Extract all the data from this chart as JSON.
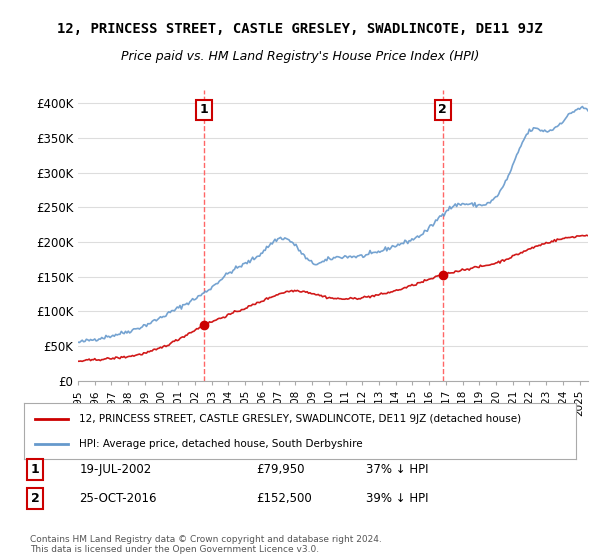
{
  "title": "12, PRINCESS STREET, CASTLE GRESLEY, SWADLINCOTE, DE11 9JZ",
  "subtitle": "Price paid vs. HM Land Registry's House Price Index (HPI)",
  "ylabel": "",
  "ylim": [
    0,
    420000
  ],
  "yticks": [
    0,
    50000,
    100000,
    150000,
    200000,
    250000,
    300000,
    350000,
    400000
  ],
  "ytick_labels": [
    "£0",
    "£50K",
    "£100K",
    "£150K",
    "£200K",
    "£250K",
    "£300K",
    "£350K",
    "£400K"
  ],
  "sale1_date": 2002.54,
  "sale1_price": 79950,
  "sale1_label": "1",
  "sale1_text": "19-JUL-2002",
  "sale1_price_text": "£79,950",
  "sale1_hpi_text": "37% ↓ HPI",
  "sale2_date": 2016.81,
  "sale2_price": 152500,
  "sale2_label": "2",
  "sale2_text": "25-OCT-2016",
  "sale2_price_text": "£152,500",
  "sale2_hpi_text": "39% ↓ HPI",
  "line1_color": "#cc0000",
  "line2_color": "#6699cc",
  "vline_color": "#ff6666",
  "grid_color": "#dddddd",
  "bg_color": "#ffffff",
  "legend_line1": "12, PRINCESS STREET, CASTLE GRESLEY, SWADLINCOTE, DE11 9JZ (detached house)",
  "legend_line2": "HPI: Average price, detached house, South Derbyshire",
  "footnote": "Contains HM Land Registry data © Crown copyright and database right 2024.\nThis data is licensed under the Open Government Licence v3.0.",
  "xmin": 1995,
  "xmax": 2025.5
}
